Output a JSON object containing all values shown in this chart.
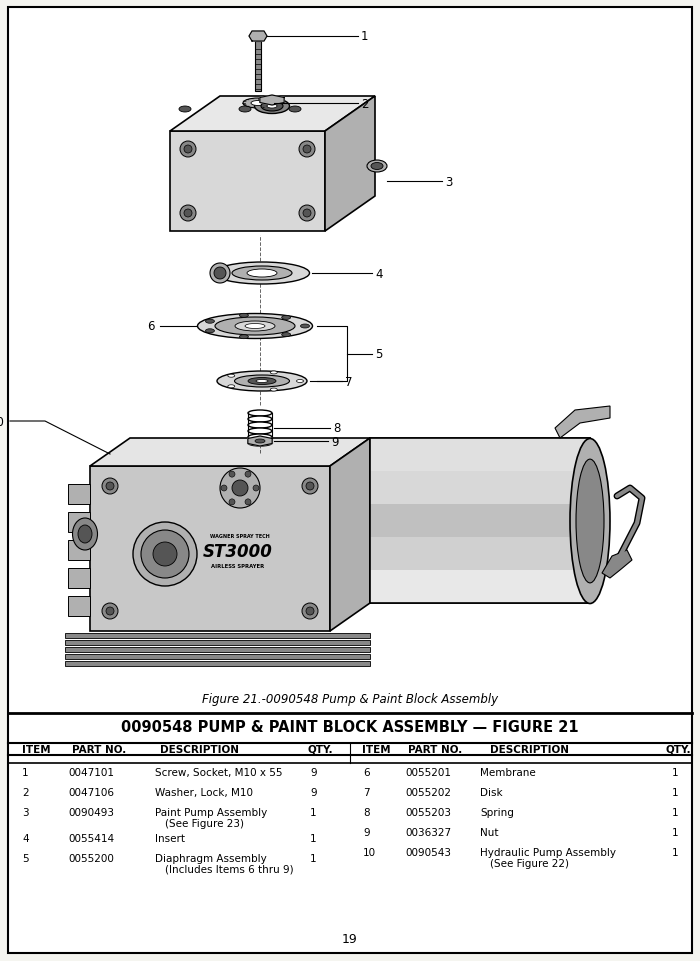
{
  "page_bg": "#f5f5f0",
  "border_color": "#000000",
  "figure_caption": "Figure 21.-0090548 Pump & Paint Block Assembly",
  "table_title": "0090548 PUMP & PAINT BLOCK ASSEMBLY — FIGURE 21",
  "parts_left": [
    {
      "item": "1",
      "part": "0047101",
      "desc": "Screw, Socket, M10 x 55",
      "desc2": "",
      "qty": "9"
    },
    {
      "item": "2",
      "part": "0047106",
      "desc": "Washer, Lock, M10",
      "desc2": "",
      "qty": "9"
    },
    {
      "item": "3",
      "part": "0090493",
      "desc": "Paint Pump Assembly",
      "desc2": "(See Figure 23)",
      "qty": "1"
    },
    {
      "item": "4",
      "part": "0055414",
      "desc": "Insert",
      "desc2": "",
      "qty": "1"
    },
    {
      "item": "5",
      "part": "0055200",
      "desc": "Diaphragm Assembly",
      "desc2": "(Includes Items 6 thru 9)",
      "qty": "1"
    }
  ],
  "parts_right": [
    {
      "item": "6",
      "part": "0055201",
      "desc": "Membrane",
      "desc2": "",
      "qty": "1"
    },
    {
      "item": "7",
      "part": "0055202",
      "desc": "Disk",
      "desc2": "",
      "qty": "1"
    },
    {
      "item": "8",
      "part": "0055203",
      "desc": "Spring",
      "desc2": "",
      "qty": "1"
    },
    {
      "item": "9",
      "part": "0036327",
      "desc": "Nut",
      "desc2": "",
      "qty": "1"
    },
    {
      "item": "10",
      "part": "0090543",
      "desc": "Hydraulic Pump Assembly",
      "desc2": "(See Figure 22)",
      "qty": "1"
    }
  ],
  "page_number": "19",
  "gray_light": "#d8d8d8",
  "gray_mid": "#b0b0b0",
  "gray_dark": "#888888",
  "gray_darker": "#555555",
  "black": "#000000",
  "white": "#ffffff"
}
